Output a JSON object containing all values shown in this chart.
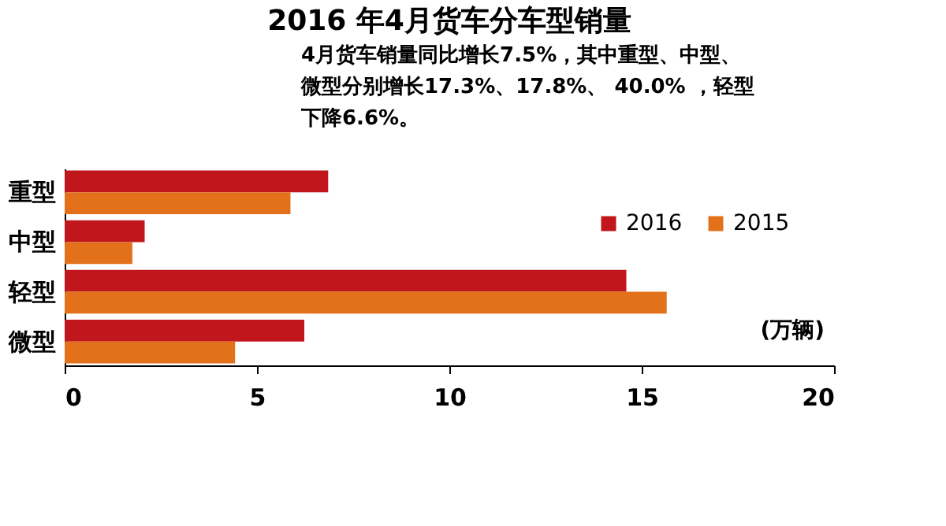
{
  "chart_data": {
    "type": "bar",
    "orientation": "horizontal",
    "title": "2016 年4月货车分车型销量",
    "annotations": [
      "4月货车销量同比增长7.5%，其中重型、中型、微型分别增长17.3%、17.8%、 40.0% ，轻型下降6.6%。",
      "(万辆)"
    ],
    "categories": [
      "重型",
      "中型",
      "轻型",
      "微型"
    ],
    "series": [
      {
        "name": "2016",
        "color": "#c0161c",
        "values": [
          6.85,
          2.08,
          14.6,
          6.23
        ]
      },
      {
        "name": "2015",
        "color": "#e3701a",
        "values": [
          5.87,
          1.76,
          15.65,
          4.43
        ]
      }
    ],
    "xlim": [
      0,
      20
    ],
    "xticks": [
      0,
      5,
      10,
      15,
      20
    ],
    "grid": false,
    "legend": "top right"
  }
}
